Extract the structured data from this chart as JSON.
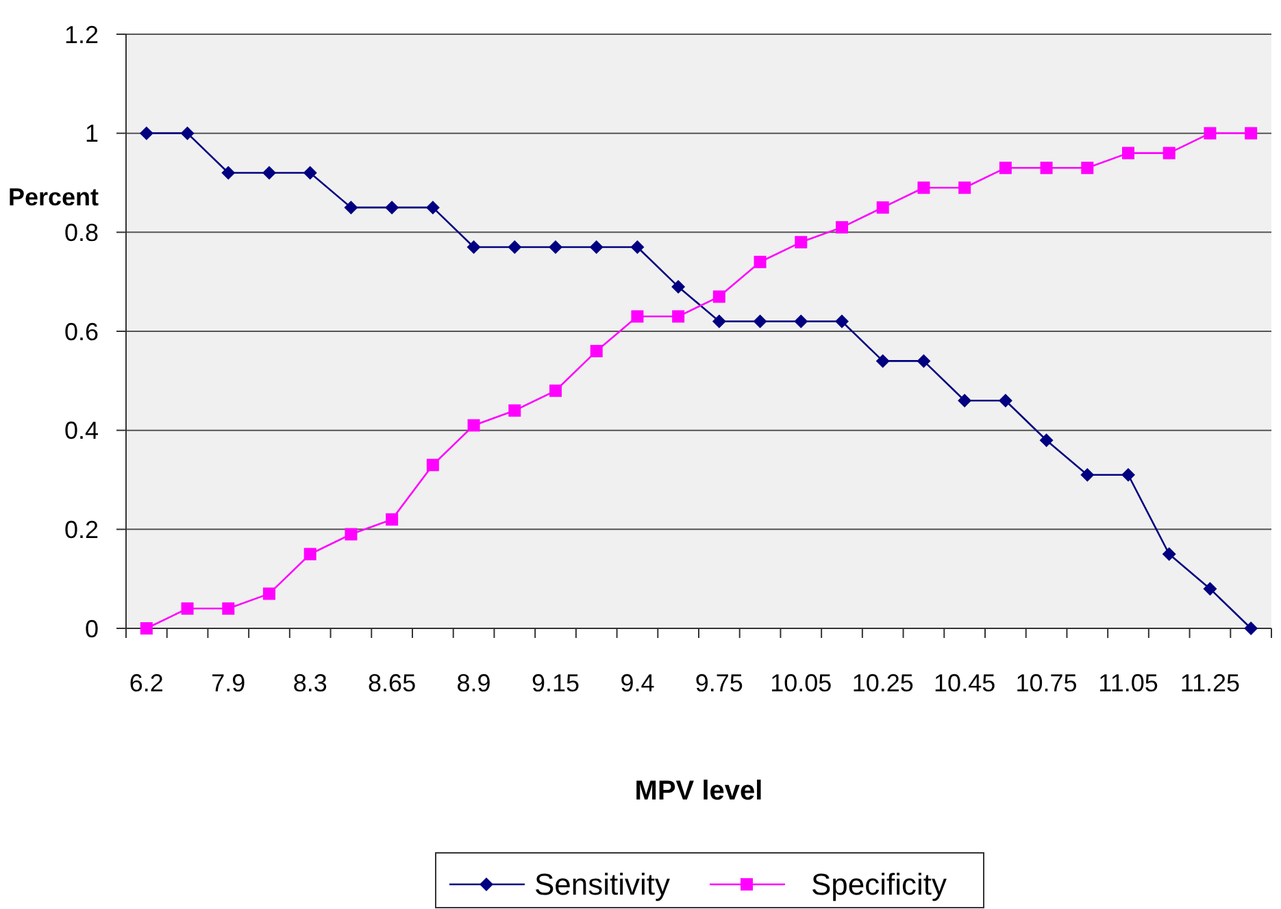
{
  "chart_data": {
    "type": "line",
    "xlabel": "MPV level",
    "ylabel": "Percent",
    "categories": [
      "6.2",
      null,
      "7.9",
      null,
      "8.3",
      null,
      "8.65",
      null,
      "8.9",
      null,
      "9.15",
      null,
      "9.4",
      null,
      "9.75",
      null,
      "10.05",
      null,
      "10.25",
      null,
      "10.45",
      null,
      "10.75",
      null,
      "11.05",
      null,
      "11.25",
      null
    ],
    "series": [
      {
        "name": "Sensitivity",
        "color": "#000080",
        "marker": "diamond",
        "values": [
          1,
          1,
          0.92,
          0.92,
          0.92,
          0.85,
          0.85,
          0.85,
          0.77,
          0.77,
          0.77,
          0.77,
          0.77,
          0.69,
          0.62,
          0.62,
          0.62,
          0.62,
          0.54,
          0.54,
          0.46,
          0.46,
          0.38,
          0.31,
          0.31,
          0.15,
          0.08,
          0
        ]
      },
      {
        "name": "Specificity",
        "color": "#ff00ff",
        "marker": "square",
        "values": [
          0,
          0.04,
          0.04,
          0.07,
          0.15,
          0.19,
          0.22,
          0.33,
          0.41,
          0.44,
          0.48,
          0.56,
          0.63,
          0.63,
          0.67,
          0.74,
          0.78,
          0.81,
          0.85,
          0.89,
          0.89,
          0.93,
          0.93,
          0.93,
          0.96,
          0.96,
          1,
          1
        ]
      }
    ],
    "ylim": [
      0,
      1.2
    ],
    "yticks": [
      0,
      0.2,
      0.4,
      0.6,
      0.8,
      1,
      1.2
    ],
    "grid": "y",
    "legend": "bottom"
  }
}
